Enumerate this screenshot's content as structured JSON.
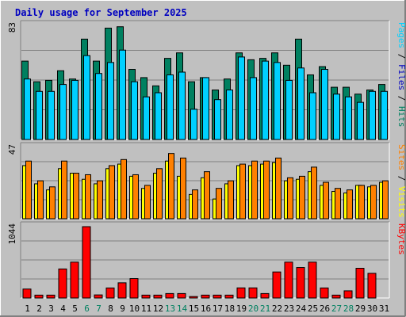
{
  "title": "Daily usage for September 2025",
  "colors": {
    "background": "#c0c0c0",
    "plot_background": "#c0c0c0",
    "title": "#0000c0",
    "hits": "#008060",
    "files": "#00d0ff",
    "pages": "#00d0ff",
    "sites": "#ff8000",
    "visits": "#ffff00",
    "kbytes": "#ff0000",
    "weekend": "#008060",
    "weekday": "#000000"
  },
  "chart_data": [
    {
      "type": "bar",
      "title": "Hits / Files / Pages",
      "ymax_label": "83",
      "ylim": [
        0,
        83
      ],
      "categories": [
        "1",
        "2",
        "3",
        "4",
        "5",
        "6",
        "7",
        "8",
        "9",
        "10",
        "11",
        "12",
        "13",
        "14",
        "15",
        "16",
        "17",
        "18",
        "19",
        "20",
        "21",
        "22",
        "23",
        "24",
        "25",
        "26",
        "27",
        "28",
        "29",
        "30",
        "31"
      ],
      "series": [
        {
          "name": "Hits",
          "values": [
            57,
            42,
            43,
            50,
            44,
            73,
            57,
            81,
            82,
            51,
            45,
            39,
            59,
            63,
            42,
            45,
            36,
            44,
            63,
            58,
            59,
            63,
            54,
            73,
            47,
            53,
            38,
            38,
            33,
            36,
            40
          ]
        },
        {
          "name": "Files",
          "values": [
            44,
            35,
            35,
            40,
            43,
            61,
            48,
            56,
            65,
            42,
            31,
            34,
            47,
            49,
            22,
            45,
            29,
            36,
            60,
            45,
            57,
            56,
            43,
            52,
            34,
            51,
            33,
            31,
            27,
            35,
            35
          ]
        },
        {
          "name": "Pages",
          "values": [
            0,
            0,
            0,
            0,
            0,
            0,
            0,
            0,
            0,
            0,
            0,
            0,
            0,
            0,
            0,
            0,
            0,
            0,
            0,
            0,
            0,
            0,
            0,
            0,
            0,
            0,
            0,
            0,
            0,
            0,
            0
          ]
        }
      ]
    },
    {
      "type": "bar",
      "title": "Sites / Visits",
      "ymax_label": "47",
      "ylim": [
        0,
        47
      ],
      "categories": [
        "1",
        "2",
        "3",
        "4",
        "5",
        "6",
        "7",
        "8",
        "9",
        "10",
        "11",
        "12",
        "13",
        "14",
        "15",
        "16",
        "17",
        "18",
        "19",
        "20",
        "21",
        "22",
        "23",
        "24",
        "25",
        "26",
        "27",
        "28",
        "29",
        "30",
        "31"
      ],
      "series": [
        {
          "name": "Sites",
          "values": [
            38,
            25,
            21,
            38,
            30,
            29,
            25,
            35,
            39,
            29,
            22,
            33,
            43,
            40,
            19,
            31,
            20,
            25,
            36,
            38,
            38,
            40,
            27,
            28,
            34,
            24,
            20,
            19,
            22,
            22,
            25
          ]
        },
        {
          "name": "Visits",
          "values": [
            35,
            23,
            19,
            33,
            30,
            26,
            23,
            33,
            36,
            28,
            20,
            30,
            38,
            28,
            16,
            27,
            13,
            23,
            35,
            35,
            36,
            37,
            25,
            26,
            31,
            22,
            18,
            17,
            22,
            21,
            24
          ]
        }
      ]
    },
    {
      "type": "bar",
      "title": "KBytes",
      "ymax_label": "1044",
      "ylim": [
        0,
        1044
      ],
      "categories": [
        "1",
        "2",
        "3",
        "4",
        "5",
        "6",
        "7",
        "8",
        "9",
        "10",
        "11",
        "12",
        "13",
        "14",
        "15",
        "16",
        "17",
        "18",
        "19",
        "20",
        "21",
        "22",
        "23",
        "24",
        "25",
        "26",
        "27",
        "28",
        "29",
        "30",
        "31"
      ],
      "series": [
        {
          "name": "KBytes",
          "values": [
            131,
            42,
            42,
            425,
            525,
            1044,
            45,
            147,
            222,
            284,
            42,
            42,
            65,
            65,
            21,
            42,
            42,
            42,
            148,
            148,
            65,
            381,
            525,
            446,
            525,
            147,
            42,
            105,
            435,
            361,
            0
          ]
        }
      ]
    }
  ],
  "axis": {
    "days": [
      "1",
      "2",
      "3",
      "4",
      "5",
      "6",
      "7",
      "8",
      "9",
      "10",
      "11",
      "12",
      "13",
      "14",
      "15",
      "16",
      "17",
      "18",
      "19",
      "20",
      "21",
      "22",
      "23",
      "24",
      "25",
      "26",
      "27",
      "28",
      "29",
      "30",
      "31"
    ],
    "weekend_days": [
      "6",
      "7",
      "13",
      "14",
      "20",
      "21",
      "27",
      "28"
    ]
  },
  "right_labels": {
    "panel1": [
      {
        "text": "Pages",
        "color": "#00d0ff"
      },
      {
        "text": " / ",
        "color": "#000000"
      },
      {
        "text": "Files",
        "color": "#0000c0"
      },
      {
        "text": " / ",
        "color": "#000000"
      },
      {
        "text": "Hits",
        "color": "#008060"
      }
    ],
    "panel2": [
      {
        "text": "Sites",
        "color": "#ff8000"
      },
      {
        "text": " / ",
        "color": "#000000"
      },
      {
        "text": "Visits",
        "color": "#ffff00"
      }
    ],
    "panel3": [
      {
        "text": "KBytes",
        "color": "#ff0000"
      }
    ]
  }
}
